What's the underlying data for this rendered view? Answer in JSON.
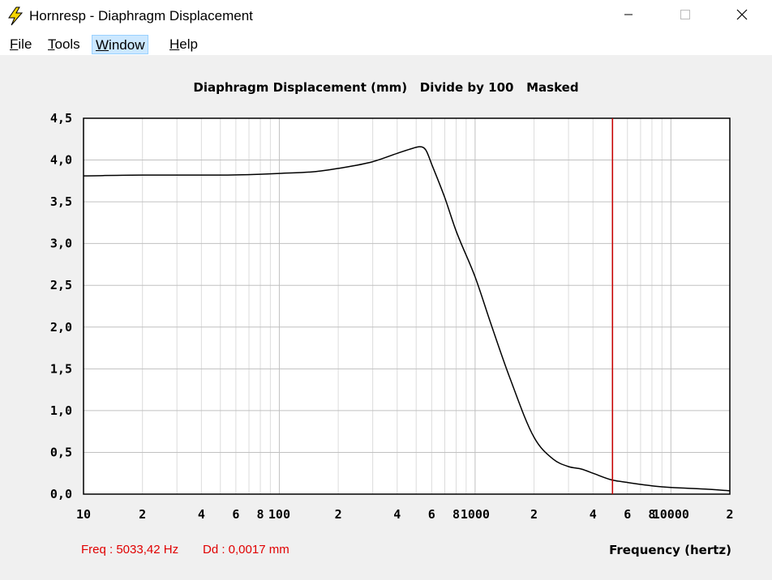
{
  "window": {
    "title": "Hornresp - Diaphragm Displacement",
    "icon": "lightning-bolt-icon",
    "minimize_icon": "minimize-icon",
    "maximize_icon": "maximize-icon",
    "close_icon": "close-icon"
  },
  "menu": {
    "items": [
      {
        "label": "File",
        "accel": "F",
        "rest": "ile"
      },
      {
        "label": "Tools",
        "accel": "T",
        "rest": "ools"
      },
      {
        "label": "Window",
        "accel": "W",
        "rest": "indow"
      },
      {
        "label": "Help",
        "accel": "H",
        "rest": "elp"
      }
    ],
    "active_index": 2
  },
  "chart_data": {
    "type": "line",
    "title": "Diaphragm Displacement (mm)   Divide by 100   Masked",
    "xlabel": "Frequency (hertz)",
    "ylabel": "",
    "xscale": "log",
    "xlim": [
      10,
      20000
    ],
    "ylim": [
      0,
      4.5
    ],
    "yticks": [
      "0,0",
      "0,5",
      "1,0",
      "1,5",
      "2,0",
      "2,5",
      "3,0",
      "3,5",
      "4,0",
      "4,5"
    ],
    "xtick_labels": [
      {
        "x": 10,
        "label": "10"
      },
      {
        "x": 20,
        "label": "2"
      },
      {
        "x": 40,
        "label": "4"
      },
      {
        "x": 60,
        "label": "6"
      },
      {
        "x": 80,
        "label": "8"
      },
      {
        "x": 100,
        "label": "100"
      },
      {
        "x": 200,
        "label": "2"
      },
      {
        "x": 400,
        "label": "4"
      },
      {
        "x": 600,
        "label": "6"
      },
      {
        "x": 800,
        "label": "8"
      },
      {
        "x": 1000,
        "label": "1000"
      },
      {
        "x": 2000,
        "label": "2"
      },
      {
        "x": 4000,
        "label": "4"
      },
      {
        "x": 6000,
        "label": "6"
      },
      {
        "x": 8000,
        "label": "8"
      },
      {
        "x": 10000,
        "label": "10000"
      },
      {
        "x": 20000,
        "label": "2"
      }
    ],
    "grid": true,
    "cursor_x": 5033.42,
    "series": [
      {
        "x": [
          10,
          20,
          50,
          80,
          100,
          150,
          200,
          300,
          400,
          480,
          520,
          560,
          600,
          700,
          800,
          1000,
          1200,
          1500,
          2000,
          2500,
          3000,
          3500,
          4000,
          5000,
          6000,
          8000,
          10000,
          15000,
          20000
        ],
        "y": [
          3.81,
          3.82,
          3.82,
          3.83,
          3.84,
          3.86,
          3.9,
          3.98,
          4.08,
          4.14,
          4.16,
          4.12,
          3.95,
          3.55,
          3.15,
          2.6,
          2.05,
          1.4,
          0.68,
          0.42,
          0.33,
          0.3,
          0.25,
          0.17,
          0.14,
          0.1,
          0.08,
          0.06,
          0.04
        ]
      }
    ]
  },
  "readout": {
    "freq": "Freq : 5033,42 Hz",
    "dd": "Dd : 0,0017 mm"
  },
  "colors": {
    "curve": "#000000",
    "cursor": "#cc0000",
    "grid_major": "#c0c0c0",
    "grid_minor": "#dcdcdc",
    "readout": "#e00000"
  }
}
